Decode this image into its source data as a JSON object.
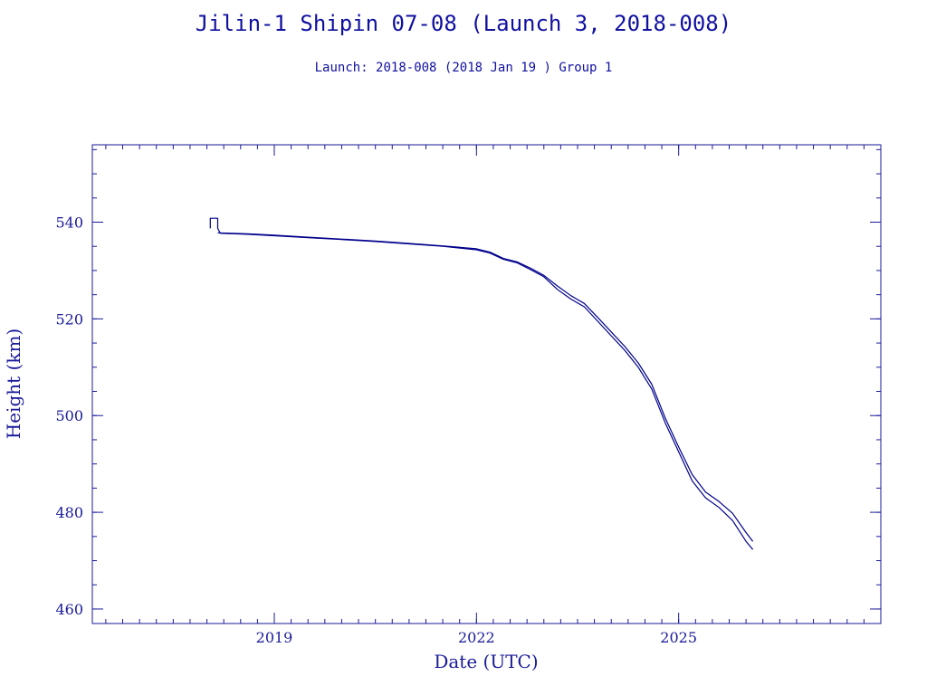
{
  "colors": {
    "axis": "#1a1a9a",
    "line": "#00008b",
    "background": "#ffffff"
  },
  "chart_data": {
    "type": "line",
    "title": "Jilin-1 Shipin 07-08 (Launch 3, 2018-008)",
    "subtitle": "Launch: 2018-008  (2018 Jan 19 )  Group 1",
    "xlabel": "Date (UTC)",
    "ylabel": "Height (km)",
    "xlim": [
      2016.3,
      2028.0
    ],
    "ylim": [
      457,
      556
    ],
    "x_ticks": [
      2019,
      2022,
      2025
    ],
    "x_tick_labels": [
      "2019",
      "2022",
      "2025"
    ],
    "x_minor_step": 0.25,
    "y_ticks": [
      460,
      480,
      500,
      520,
      540
    ],
    "y_tick_labels": [
      "460",
      "480",
      "500",
      "520",
      "540"
    ],
    "y_minor_step": 5,
    "grid": false,
    "series": [
      {
        "x": [
          2018.05,
          2018.05,
          2018.16,
          2018.16,
          2018.2,
          2018.6,
          2019.0,
          2019.5,
          2020.0,
          2020.5,
          2021.0,
          2021.5,
          2022.0,
          2022.2,
          2022.4,
          2022.6,
          2022.8,
          2023.0,
          2023.2,
          2023.4,
          2023.6,
          2023.8,
          2024.0,
          2024.2,
          2024.4,
          2024.6,
          2024.8,
          2025.0,
          2025.2,
          2025.4,
          2025.6,
          2025.8,
          2026.0,
          2026.1
        ],
        "values": [
          538.7,
          540.8,
          540.8,
          538.7,
          537.7,
          537.5,
          537.2,
          536.8,
          536.4,
          536.0,
          535.5,
          535.0,
          534.3,
          533.6,
          532.3,
          531.6,
          530.2,
          528.7,
          526.1,
          524.1,
          522.5,
          519.5,
          516.5,
          513.5,
          510.0,
          505.5,
          498.5,
          492.5,
          486.5,
          483.0,
          481.0,
          478.3,
          474.0,
          472.3
        ]
      },
      {
        "x": [
          2018.16,
          2018.6,
          2019.0,
          2019.5,
          2020.0,
          2020.5,
          2021.0,
          2021.5,
          2022.0,
          2022.2,
          2022.4,
          2022.6,
          2022.8,
          2023.0,
          2023.2,
          2023.4,
          2023.6,
          2023.8,
          2024.0,
          2024.2,
          2024.4,
          2024.6,
          2024.8,
          2025.0,
          2025.2,
          2025.4,
          2025.6,
          2025.8,
          2026.0,
          2026.1
        ],
        "values": [
          537.8,
          537.6,
          537.3,
          536.9,
          536.5,
          536.1,
          535.6,
          535.1,
          534.5,
          533.8,
          532.5,
          531.8,
          530.5,
          529.0,
          526.8,
          524.8,
          523.2,
          520.3,
          517.3,
          514.3,
          510.9,
          506.5,
          499.5,
          493.5,
          487.8,
          484.2,
          482.2,
          479.8,
          475.8,
          474.0
        ]
      }
    ]
  }
}
